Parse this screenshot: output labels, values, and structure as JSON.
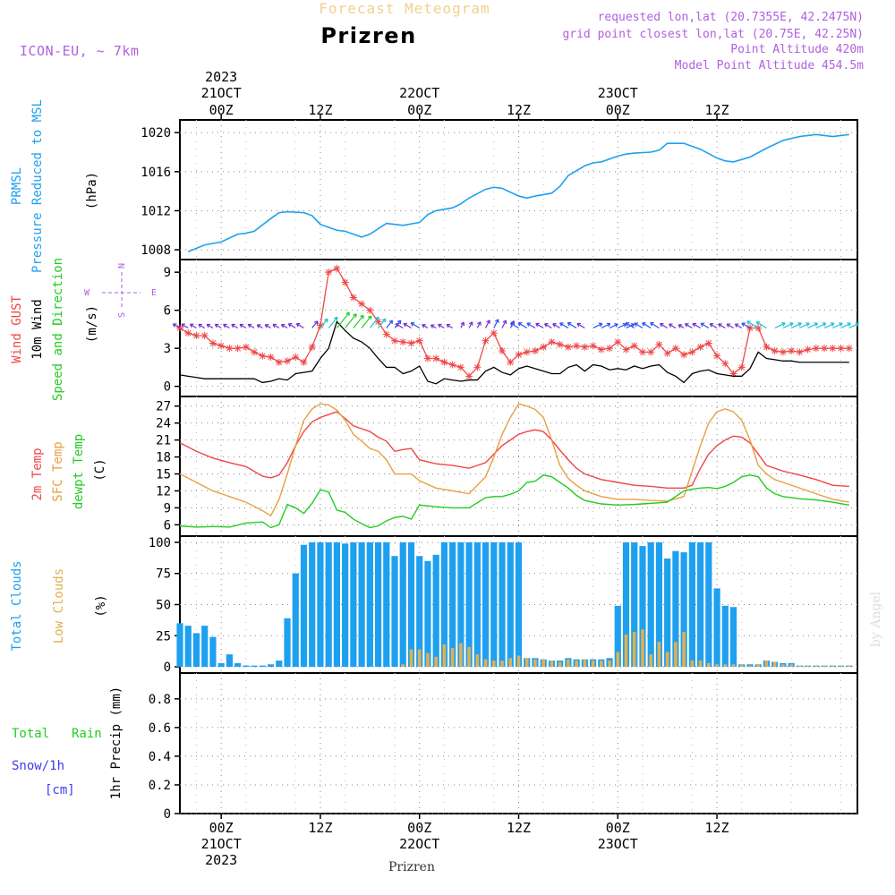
{
  "header": {
    "suptitle": "Forecast Meteogram",
    "title": "Prizren",
    "model": "ICON-EU, ~ 7km",
    "info_lines": [
      "requested lon,lat (20.7355E, 42.2475N)",
      "grid point closest lon,lat (20.75E, 42.25N)",
      "Point Altitude 420m",
      "Model Point Altitude 454.5m"
    ],
    "footer": "Prizren",
    "watermark": "by Angel"
  },
  "colors": {
    "pressure": "#1ea0f0",
    "gust": "#f04646",
    "wind": "#000000",
    "wind_dir": "#22cc22",
    "temp": "#f04646",
    "sfc_temp": "#e8a040",
    "dewpt": "#22cc22",
    "total_clouds": "#1ea0f0",
    "low_clouds": "#e0b050",
    "rain": "#22cc22",
    "snow": "#3c3cf0",
    "ylabel_purple": "#b060e0"
  },
  "chart_data": [
    {
      "type": "line",
      "panel": "pressure",
      "ylabel_lines": [
        "PRMSL",
        "Pressure Reduced to MSL"
      ],
      "unit": "(hPa)",
      "yticks": [
        1008,
        1012,
        1016,
        1020
      ],
      "ylim": [
        1007,
        1021.3
      ],
      "x_hours": [
        -4,
        -2,
        0,
        2,
        3,
        4,
        6,
        7,
        8,
        10,
        11,
        12,
        14,
        15,
        16,
        17,
        18,
        20,
        21,
        22,
        24,
        25,
        26,
        28,
        29,
        30,
        32,
        33,
        34,
        36,
        37,
        38,
        40,
        41,
        42,
        44,
        45,
        46,
        48,
        49,
        50,
        52,
        53,
        54,
        56,
        57,
        58,
        60,
        61,
        62,
        64,
        66,
        67,
        68,
        70,
        71,
        72,
        74,
        75,
        76
      ],
      "values": [
        1007.8,
        1008.5,
        1008.8,
        1009.6,
        1009.7,
        1009.9,
        1011.2,
        1011.8,
        1011.9,
        1011.8,
        1011.5,
        1010.6,
        1010.0,
        1009.9,
        1009.6,
        1009.3,
        1009.6,
        1010.7,
        1010.6,
        1010.5,
        1010.8,
        1011.6,
        1012.0,
        1012.3,
        1012.7,
        1013.3,
        1014.2,
        1014.4,
        1014.3,
        1013.5,
        1013.3,
        1013.5,
        1013.8,
        1014.5,
        1015.6,
        1016.6,
        1016.9,
        1017.0,
        1017.6,
        1017.8,
        1017.9,
        1018.0,
        1018.2,
        1018.9,
        1018.9,
        1018.6,
        1018.3,
        1017.4,
        1017.1,
        1017.0,
        1017.5,
        1018.4,
        1018.8,
        1019.2,
        1019.6,
        1019.7,
        1019.8,
        1019.6,
        1019.7,
        1019.8
      ]
    },
    {
      "type": "line",
      "panel": "wind",
      "ylabel_lines": [
        "Wind GUST",
        "10m Wind",
        "Speed and Direction"
      ],
      "unit": "(m/s)",
      "compass": [
        "N",
        "S",
        "W",
        "E"
      ],
      "yticks": [
        0,
        3,
        6,
        9
      ],
      "ylim": [
        -0.8,
        10
      ],
      "x_hours": [
        -5,
        -4,
        -3,
        -2,
        -1,
        0,
        1,
        2,
        3,
        4,
        5,
        6,
        7,
        8,
        9,
        10,
        11,
        12,
        13,
        14,
        15,
        16,
        17,
        18,
        19,
        20,
        21,
        22,
        23,
        24,
        25,
        26,
        27,
        28,
        29,
        30,
        31,
        32,
        33,
        34,
        35,
        36,
        37,
        38,
        39,
        40,
        41,
        42,
        43,
        44,
        45,
        46,
        47,
        48,
        49,
        50,
        51,
        52,
        53,
        54,
        55,
        56,
        57,
        58,
        59,
        60,
        61,
        62,
        63,
        64,
        65,
        66,
        67,
        68,
        69,
        70,
        71,
        72,
        73,
        74,
        75,
        76
      ],
      "series": [
        {
          "name": "Wind GUST",
          "values": [
            4.6,
            4.2,
            4.0,
            4.0,
            3.4,
            3.2,
            3.0,
            3.0,
            3.1,
            2.7,
            2.4,
            2.3,
            1.9,
            2.0,
            2.3,
            1.9,
            3.1,
            4.8,
            9.0,
            9.3,
            8.2,
            7.0,
            6.5,
            6.0,
            5.1,
            4.1,
            3.6,
            3.5,
            3.4,
            3.6,
            2.2,
            2.2,
            1.9,
            1.7,
            1.5,
            0.8,
            1.5,
            3.6,
            4.2,
            2.8,
            1.9,
            2.5,
            2.7,
            2.8,
            3.1,
            3.5,
            3.3,
            3.1,
            3.2,
            3.1,
            3.2,
            2.9,
            3.0,
            3.5,
            2.9,
            3.2,
            2.7,
            2.7,
            3.3,
            2.6,
            3.0,
            2.5,
            2.7,
            3.1,
            3.4,
            2.4,
            1.8,
            1.0,
            1.5,
            4.6,
            4.6,
            3.1,
            2.8,
            2.7,
            2.8,
            2.7,
            2.9,
            3.0,
            3.0,
            3.0,
            3.0,
            3.0
          ]
        },
        {
          "name": "10m Wind",
          "values": [
            0.9,
            0.8,
            0.7,
            0.6,
            0.6,
            0.6,
            0.6,
            0.6,
            0.6,
            0.6,
            0.3,
            0.4,
            0.6,
            0.5,
            1.0,
            1.1,
            1.2,
            2.2,
            3.0,
            5.1,
            4.4,
            3.8,
            3.5,
            3.0,
            2.2,
            1.5,
            1.5,
            1.0,
            1.2,
            1.6,
            0.4,
            0.2,
            0.6,
            0.5,
            0.4,
            0.5,
            0.5,
            1.2,
            1.5,
            1.1,
            0.9,
            1.4,
            1.6,
            1.4,
            1.2,
            1.0,
            1.0,
            1.5,
            1.7,
            1.2,
            1.7,
            1.6,
            1.3,
            1.4,
            1.3,
            1.6,
            1.4,
            1.6,
            1.7,
            1.1,
            0.8,
            0.3,
            1.0,
            1.2,
            1.3,
            1.0,
            0.9,
            0.8,
            0.8,
            1.4,
            2.7,
            2.2,
            2.1,
            2.0,
            2.0,
            1.9,
            1.9,
            1.9,
            1.9,
            1.9,
            1.9,
            1.9
          ]
        }
      ]
    },
    {
      "type": "line",
      "panel": "temperature",
      "ylabel_lines": [
        "2m Temp",
        "SFC Temp",
        "dewpt Temp"
      ],
      "unit": "(C)",
      "yticks": [
        6,
        9,
        12,
        15,
        18,
        21,
        24,
        27
      ],
      "ylim": [
        4,
        28.7
      ],
      "x_hours": [
        -5,
        -3,
        -1,
        1,
        3,
        5,
        6,
        7,
        8,
        9,
        10,
        11,
        12,
        13,
        14,
        15,
        16,
        17,
        18,
        19,
        20,
        21,
        22,
        23,
        24,
        26,
        28,
        30,
        32,
        33,
        34,
        35,
        36,
        37,
        38,
        39,
        40,
        41,
        42,
        43,
        44,
        46,
        48,
        50,
        52,
        54,
        56,
        57,
        58,
        59,
        60,
        61,
        62,
        63,
        64,
        65,
        66,
        67,
        68,
        70,
        72,
        74,
        76
      ],
      "series": [
        {
          "name": "2m Temp",
          "values": [
            20.5,
            19.0,
            17.8,
            17.0,
            16.3,
            14.6,
            14.3,
            14.8,
            17.0,
            20.0,
            22.5,
            24.2,
            25.0,
            25.5,
            26.0,
            24.8,
            23.5,
            23.0,
            22.5,
            21.5,
            20.8,
            19.0,
            19.3,
            19.5,
            17.5,
            16.8,
            16.5,
            16.0,
            17.0,
            18.5,
            20.0,
            21.0,
            22.0,
            22.5,
            22.8,
            22.5,
            21.0,
            19.2,
            17.5,
            16.0,
            15.0,
            14.0,
            13.5,
            13.0,
            12.8,
            12.5,
            12.5,
            13.0,
            16.0,
            18.5,
            20.0,
            21.0,
            21.7,
            21.5,
            20.5,
            18.5,
            16.5,
            16.0,
            15.5,
            14.8,
            14.0,
            13.0,
            12.8
          ]
        },
        {
          "name": "SFC Temp",
          "values": [
            15.0,
            13.5,
            12.0,
            11.0,
            10.0,
            8.5,
            7.6,
            10.5,
            15.0,
            20.0,
            24.5,
            26.5,
            27.4,
            27.2,
            26.3,
            24.5,
            22.0,
            20.8,
            19.5,
            19.0,
            17.5,
            15.0,
            15.0,
            15.0,
            13.8,
            12.5,
            12.0,
            11.5,
            14.5,
            18.0,
            22.0,
            25.0,
            27.4,
            27.0,
            26.4,
            25.0,
            21.0,
            16.5,
            14.2,
            13.0,
            12.0,
            11.0,
            10.5,
            10.5,
            10.3,
            10.2,
            11.0,
            15.5,
            20.0,
            24.0,
            26.0,
            26.5,
            26.0,
            24.5,
            21.0,
            16.5,
            15.0,
            14.0,
            13.5,
            12.5,
            11.5,
            10.5,
            10.0
          ]
        },
        {
          "name": "dewpt Temp",
          "values": [
            5.8,
            5.6,
            5.7,
            5.6,
            6.3,
            6.5,
            5.5,
            6.0,
            9.6,
            9.0,
            8.0,
            9.8,
            12.2,
            11.8,
            8.6,
            8.2,
            7.0,
            6.2,
            5.5,
            5.8,
            6.7,
            7.3,
            7.5,
            7.0,
            9.5,
            9.2,
            9.0,
            9.0,
            10.8,
            11.0,
            11.0,
            11.4,
            12.0,
            13.5,
            13.7,
            14.8,
            14.5,
            13.5,
            12.5,
            11.2,
            10.3,
            9.7,
            9.5,
            9.6,
            9.8,
            10.0,
            12.0,
            12.3,
            12.5,
            12.6,
            12.4,
            12.8,
            13.5,
            14.5,
            14.8,
            14.5,
            12.5,
            11.5,
            11.0,
            10.6,
            10.4,
            10.0,
            9.5
          ]
        }
      ]
    },
    {
      "type": "bar",
      "panel": "clouds",
      "ylabel_lines": [
        "Total Clouds",
        "Low Clouds"
      ],
      "unit": "(%)",
      "yticks": [
        0,
        25,
        50,
        75,
        100
      ],
      "ylim": [
        -5,
        105
      ],
      "x_hours": [
        -5,
        -4,
        -3,
        -2,
        -1,
        0,
        1,
        2,
        3,
        4,
        5,
        6,
        7,
        8,
        9,
        10,
        11,
        12,
        13,
        14,
        15,
        16,
        17,
        18,
        19,
        20,
        21,
        22,
        23,
        24,
        25,
        26,
        27,
        28,
        29,
        30,
        31,
        32,
        33,
        34,
        35,
        36,
        37,
        38,
        39,
        40,
        41,
        42,
        43,
        44,
        45,
        46,
        47,
        48,
        49,
        50,
        51,
        52,
        53,
        54,
        55,
        56,
        57,
        58,
        59,
        60,
        61,
        62,
        63,
        64,
        65,
        66,
        67,
        68,
        69,
        70,
        71,
        72,
        73,
        74,
        75,
        76
      ],
      "series": [
        {
          "name": "Total Clouds",
          "values": [
            35,
            33,
            27,
            33,
            24,
            3,
            10,
            3,
            1,
            1,
            1,
            2,
            5,
            39,
            75,
            98,
            100,
            100,
            100,
            100,
            99,
            100,
            100,
            100,
            100,
            100,
            89,
            100,
            100,
            89,
            85,
            90,
            100,
            100,
            100,
            100,
            100,
            100,
            100,
            100,
            100,
            100,
            7,
            7,
            6,
            5,
            5,
            7,
            6,
            6,
            6,
            6,
            7,
            49,
            100,
            100,
            97,
            100,
            100,
            87,
            93,
            92,
            100,
            100,
            100,
            63,
            49,
            48,
            2,
            2,
            2,
            5,
            4,
            3,
            3,
            1,
            1,
            1,
            1,
            1,
            1,
            1
          ]
        },
        {
          "name": "Low Clouds",
          "values": [
            0,
            0,
            0,
            0,
            0,
            0,
            0,
            0,
            0,
            0,
            0,
            0,
            0,
            0,
            0,
            0,
            0,
            0,
            0,
            0,
            0,
            0,
            0,
            0,
            0,
            0,
            0,
            2,
            14,
            14,
            11,
            8,
            18,
            15,
            19,
            16,
            10,
            6,
            5,
            5,
            7,
            9,
            7,
            6,
            6,
            5,
            4,
            6,
            5,
            6,
            5,
            5,
            5,
            12,
            26,
            28,
            30,
            10,
            20,
            12,
            20,
            28,
            5,
            5,
            3,
            2,
            2,
            2,
            2,
            1,
            2,
            5,
            4,
            2,
            2,
            1,
            1,
            1,
            1,
            1,
            1,
            1
          ]
        }
      ]
    },
    {
      "type": "bar",
      "panel": "precipitation",
      "ylabel_lines": [
        "Total",
        "Rain",
        "Snow/1h",
        "[cm]"
      ],
      "unit": "1hr Precip (mm)",
      "yticks": [
        0,
        0.2,
        0.4,
        0.6,
        0.8
      ],
      "yticklabels": [
        "0",
        "0.2",
        "0.4",
        "0.6",
        "0.8"
      ],
      "ylim": [
        0,
        0.98
      ],
      "series": [
        {
          "name": "Total",
          "values": []
        },
        {
          "name": "Rain",
          "values": []
        },
        {
          "name": "Snow/1h",
          "values": []
        }
      ]
    }
  ],
  "time_axis": {
    "start_hour": -5,
    "end_hour": 77,
    "major_hours": [
      0,
      12,
      24,
      36,
      48,
      60
    ],
    "top_labels": [
      "00Z",
      "12Z",
      "00Z",
      "12Z",
      "00Z",
      "12Z"
    ],
    "top_dates": [
      "21OCT",
      "22OCT",
      "23OCT"
    ],
    "top_year": "2023",
    "bottom_labels": [
      "00Z",
      "12Z",
      "00Z",
      "12Z",
      "00Z",
      "12Z"
    ],
    "bottom_dates": [
      "21OCT",
      "22OCT",
      "23OCT"
    ],
    "bottom_year": "2023"
  }
}
